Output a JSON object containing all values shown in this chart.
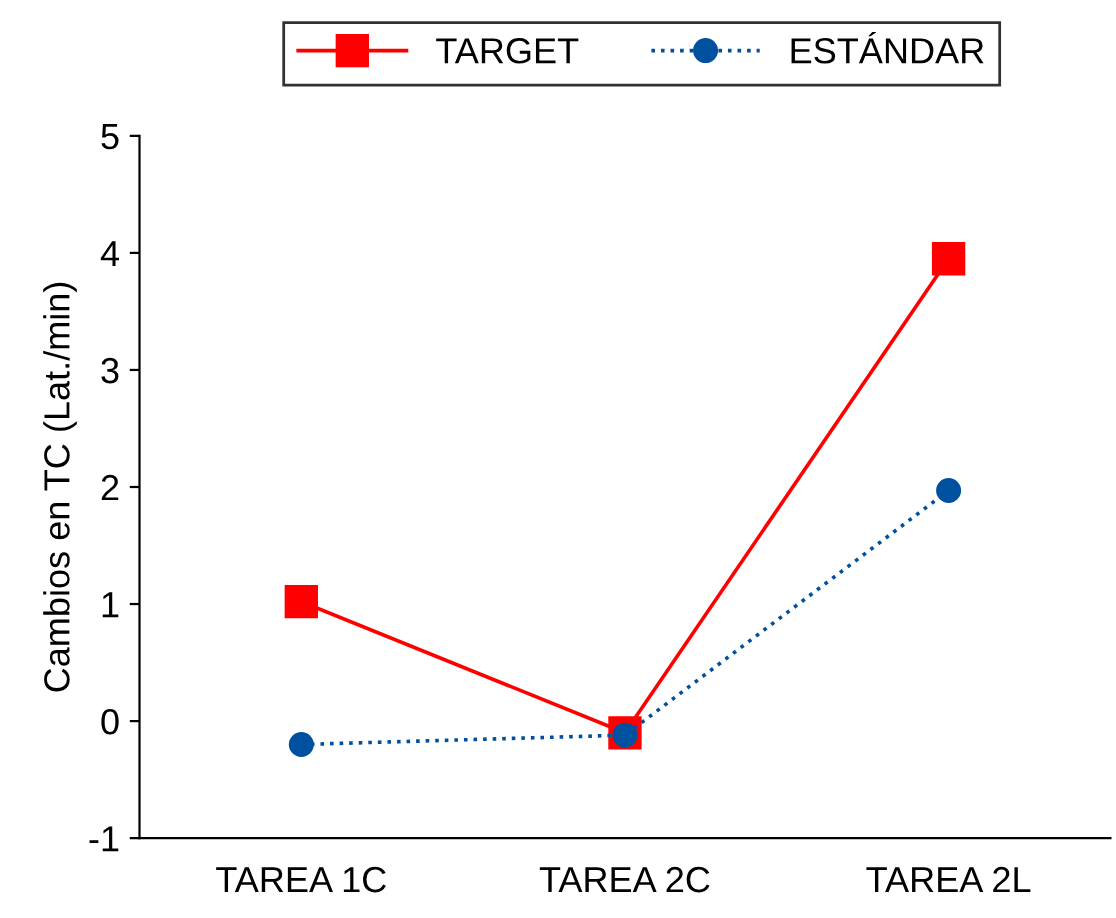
{
  "chart_data": {
    "type": "line",
    "ylabel": "Cambios en TC (Lat./min)",
    "categories": [
      "TAREA 1C",
      "TAREA 2C",
      "TAREA 2L"
    ],
    "series": [
      {
        "name": "TARGET",
        "color": "#ff0000",
        "values": [
          1.02,
          -0.1,
          3.95
        ],
        "marker": "square",
        "line_style": "solid"
      },
      {
        "name": "ESTÁNDAR",
        "color": "#0050a0",
        "values": [
          -0.2,
          -0.12,
          1.97
        ],
        "marker": "circle",
        "line_style": "dotted"
      }
    ],
    "ylim": [
      -1,
      5
    ],
    "yticks": [
      -1,
      0,
      1,
      2,
      3,
      4,
      5
    ],
    "grid": false,
    "legend": "top"
  }
}
